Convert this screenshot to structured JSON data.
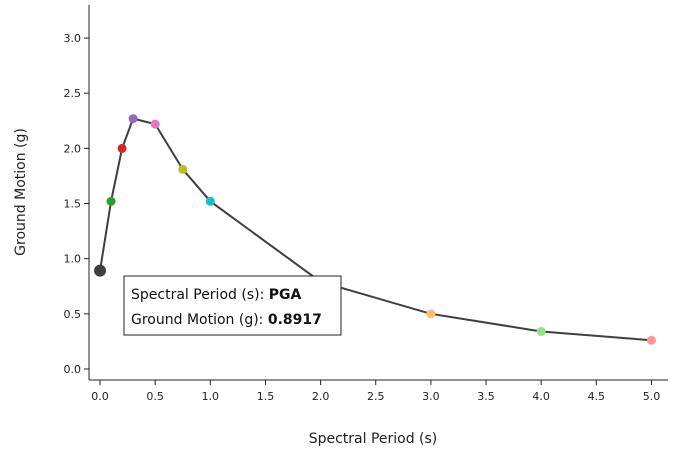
{
  "chart_data": {
    "type": "line",
    "xlabel": "Spectral Period (s)",
    "ylabel": "Ground Motion (g)",
    "xlim": [
      -0.1,
      5.15
    ],
    "ylim": [
      -0.1,
      3.3
    ],
    "x_ticks": [
      "0.0",
      "0.5",
      "1.0",
      "1.5",
      "2.0",
      "2.5",
      "3.0",
      "3.5",
      "4.0",
      "4.5",
      "5.0"
    ],
    "y_ticks": [
      "0.0",
      "0.5",
      "1.0",
      "1.5",
      "2.0",
      "2.5",
      "3.0"
    ],
    "grid": false,
    "line_color": "#3f3f3f",
    "points": [
      {
        "x": 0.0,
        "y": 0.8917,
        "color": "#3f3f3f",
        "highlighted": true
      },
      {
        "x": 0.1,
        "y": 1.52,
        "color": "#2ca02c"
      },
      {
        "x": 0.2,
        "y": 2.0,
        "color": "#d62728"
      },
      {
        "x": 0.3,
        "y": 2.27,
        "color": "#9467bd"
      },
      {
        "x": 0.5,
        "y": 2.22,
        "color": "#e377c2"
      },
      {
        "x": 0.75,
        "y": 1.81,
        "color": "#bcbd22"
      },
      {
        "x": 1.0,
        "y": 1.52,
        "color": "#17becf"
      },
      {
        "x": 2.0,
        "y": 0.79,
        "color": "#aec7e8"
      },
      {
        "x": 3.0,
        "y": 0.5,
        "color": "#ffbb78"
      },
      {
        "x": 4.0,
        "y": 0.34,
        "color": "#98df8a"
      },
      {
        "x": 5.0,
        "y": 0.26,
        "color": "#ff9896"
      }
    ]
  },
  "tooltip": {
    "period_label": "Spectral Period (s): ",
    "period_value": "PGA",
    "motion_label": "Ground Motion (g): ",
    "motion_value": "0.8917"
  }
}
